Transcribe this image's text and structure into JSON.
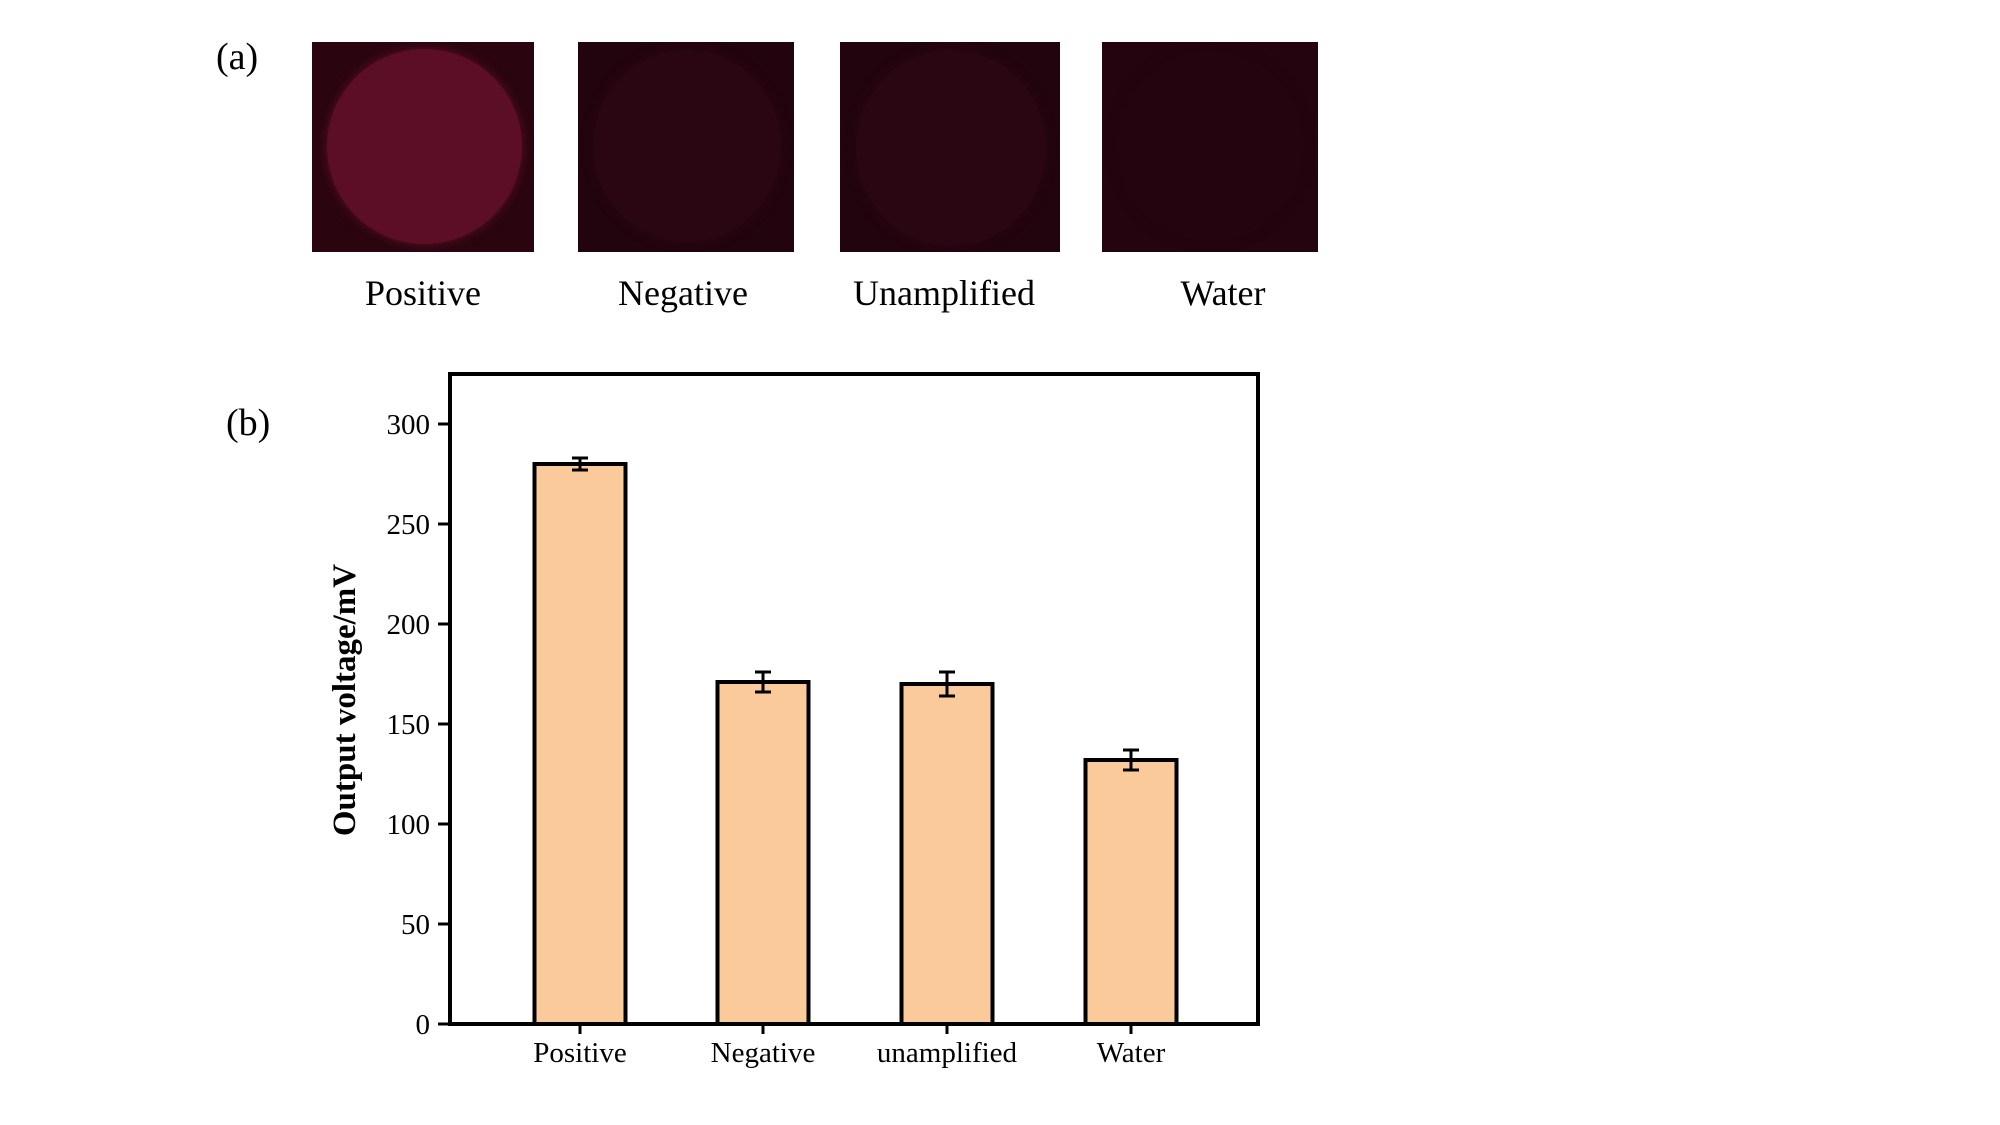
{
  "panels": {
    "a_label": "(a)",
    "b_label": "(b)"
  },
  "photos": [
    {
      "caption": "Positive",
      "background": "#2a0510",
      "well": "#5c0e26"
    },
    {
      "caption": "Negative",
      "background": "#22040f",
      "well": "#2a0612"
    },
    {
      "caption": "Unamplified",
      "background": "#22040f",
      "well": "#290612"
    },
    {
      "caption": "Water",
      "background": "#24040e",
      "well": "#24040e"
    }
  ],
  "chart_data": {
    "type": "bar",
    "categories": [
      "Positive",
      "Negative",
      "unamplified",
      "Water"
    ],
    "values": [
      280,
      171,
      170,
      132
    ],
    "errors": [
      3,
      5,
      6,
      5
    ],
    "title": "",
    "xlabel": "",
    "ylabel": "Output voltage/mV",
    "ylim": [
      0,
      325
    ],
    "yticks": [
      0,
      50,
      100,
      150,
      200,
      250,
      300
    ],
    "bar_color": "#fbca9b",
    "edge_color": "#000000",
    "grid": false,
    "legend": "none"
  }
}
